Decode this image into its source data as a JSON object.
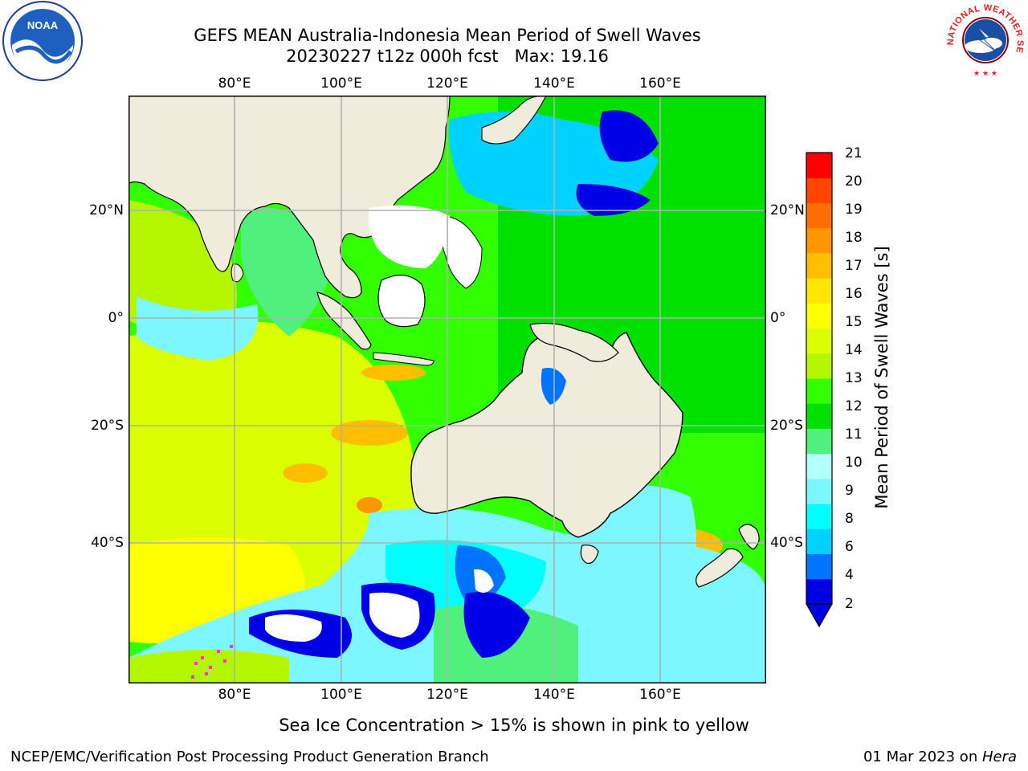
{
  "header": {
    "title_line1": "GEFS MEAN Australia-Indonesia Mean Period of Swell Waves",
    "title_line2": "20230227 t12z 000h fcst   Max: 19.16"
  },
  "logos": {
    "left": {
      "name": "noaa-logo",
      "text": "NOAA"
    },
    "right": {
      "name": "national-weather-service-logo",
      "text": "NATIONAL WEATHER SERVICE"
    }
  },
  "map": {
    "lon_ticks": [
      "80°E",
      "100°E",
      "120°E",
      "140°E",
      "160°E"
    ],
    "lat_ticks": [
      "20°N",
      "0°",
      "20°S",
      "40°S"
    ],
    "colors": {
      "land": "#efecdc",
      "blank": "#ffffff",
      "coast": "#000000",
      "grid": "#b0b0b0"
    }
  },
  "colorbar": {
    "label": "Mean Period of Swell Waves [s]",
    "ticks": [
      "21",
      "20",
      "19",
      "18",
      "17",
      "16",
      "15",
      "14",
      "13",
      "12",
      "11",
      "10",
      "9",
      "8",
      "6",
      "4",
      "2"
    ],
    "colors": [
      "#0000e6",
      "#0073ff",
      "#00d2ff",
      "#00ffff",
      "#7df7ff",
      "#b4ffff",
      "#50f07d",
      "#00e100",
      "#32ff00",
      "#b4f500",
      "#dcff00",
      "#ffff00",
      "#ffe600",
      "#ffbe00",
      "#ff9600",
      "#ff6e00",
      "#ff4600",
      "#ff0000"
    ]
  },
  "note": "Sea Ice Concentration > 15% is shown in pink to yellow",
  "footer": {
    "left": "NCEP/EMC/Verification Post Processing Product Generation Branch",
    "right_date": "01 Mar 2023 on ",
    "right_host": "Hera"
  }
}
